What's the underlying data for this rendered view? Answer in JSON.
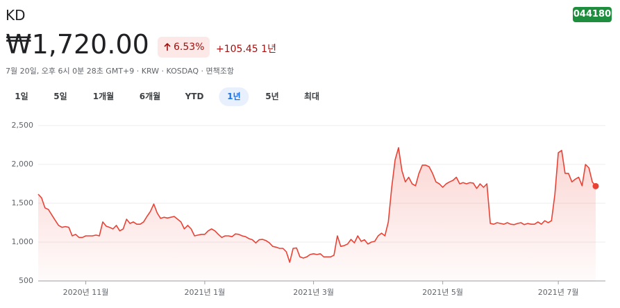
{
  "header": {
    "ticker": "KD",
    "badge": "044180",
    "price": "₩1,720.00",
    "change_percent": "6.53%",
    "change": "+105.45",
    "period": "1년",
    "info": "7월 20일, 오후 6시 0분 28초 GMT+9 · KRW · KOSDAQ · ",
    "disclaimer": "면책조항"
  },
  "tabs": [
    "1일",
    "5일",
    "1개월",
    "6개월",
    "YTD",
    "1년",
    "5년",
    "최대"
  ],
  "active_tab": 5,
  "chart_data": {
    "type": "area",
    "color": "#e94235",
    "values": [
      1616,
      1570,
      1440,
      1420,
      1350,
      1280,
      1215,
      1190,
      1200,
      1190,
      1080,
      1100,
      1060,
      1060,
      1080,
      1080,
      1080,
      1090,
      1080,
      1260,
      1205,
      1190,
      1170,
      1215,
      1145,
      1170,
      1295,
      1240,
      1260,
      1230,
      1230,
      1260,
      1330,
      1395,
      1490,
      1375,
      1305,
      1320,
      1310,
      1320,
      1330,
      1295,
      1260,
      1170,
      1215,
      1170,
      1080,
      1090,
      1100,
      1100,
      1145,
      1170,
      1145,
      1100,
      1060,
      1080,
      1080,
      1070,
      1105,
      1100,
      1080,
      1070,
      1045,
      1030,
      990,
      1030,
      1035,
      1020,
      990,
      945,
      935,
      920,
      920,
      875,
      740,
      920,
      925,
      810,
      795,
      810,
      840,
      850,
      840,
      850,
      810,
      810,
      810,
      830,
      1080,
      945,
      955,
      975,
      1035,
      990,
      1080,
      1010,
      1030,
      975,
      1000,
      1010,
      1080,
      1115,
      1080,
      1260,
      1705,
      2060,
      2215,
      1920,
      1775,
      1835,
      1750,
      1725,
      1885,
      1990,
      1990,
      1970,
      1885,
      1775,
      1750,
      1705,
      1750,
      1775,
      1795,
      1835,
      1750,
      1765,
      1750,
      1765,
      1760,
      1690,
      1750,
      1705,
      1750,
      1240,
      1230,
      1250,
      1240,
      1230,
      1250,
      1230,
      1225,
      1240,
      1250,
      1225,
      1240,
      1230,
      1230,
      1260,
      1230,
      1275,
      1250,
      1275,
      1615,
      2150,
      2180,
      1885,
      1885,
      1775,
      1810,
      1835,
      1725,
      2000,
      1955,
      1775,
      1720
    ],
    "xlim": [
      0,
      164
    ],
    "xticks": [
      {
        "value": 14,
        "label": "2020년 11월"
      },
      {
        "value": 49,
        "label": "2021년 1월"
      },
      {
        "value": 81,
        "label": "2021년 3월"
      },
      {
        "value": 119,
        "label": "2021년 5월"
      },
      {
        "value": 153,
        "label": "2021년 7월"
      }
    ],
    "ylim": [
      500,
      2500
    ],
    "yticks": [
      {
        "value": 2500,
        "label": "2,500"
      },
      {
        "value": 2000,
        "label": "2,000"
      },
      {
        "value": 1500,
        "label": "1,500"
      },
      {
        "value": 1000,
        "label": "1,000"
      },
      {
        "value": 500,
        "label": "500"
      }
    ],
    "grid": true
  }
}
